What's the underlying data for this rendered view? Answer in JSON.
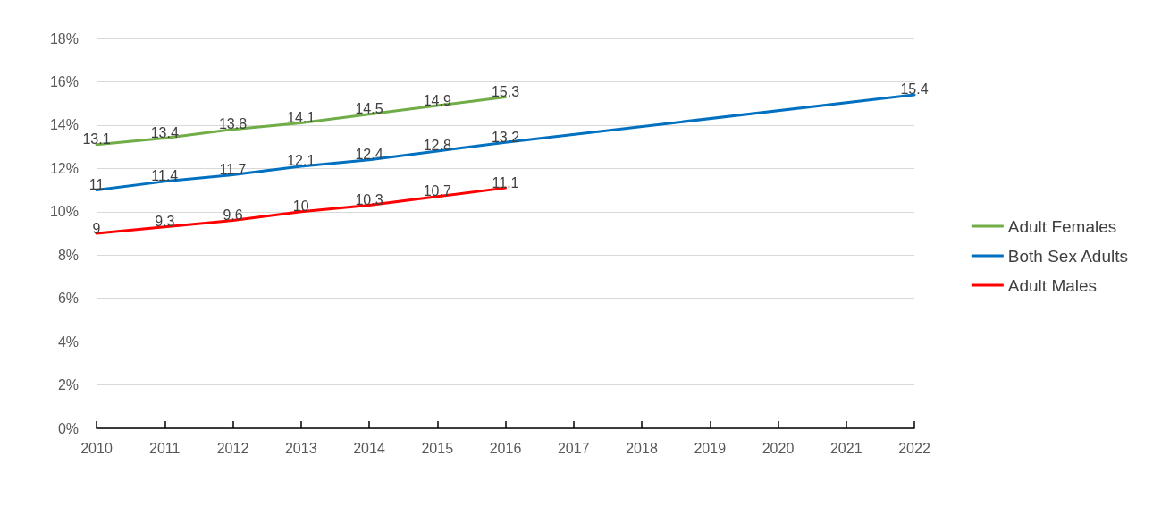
{
  "chart_data": {
    "type": "line",
    "xlim": [
      2010,
      2022
    ],
    "xticks": [
      2010,
      2011,
      2012,
      2013,
      2014,
      2015,
      2016,
      2017,
      2018,
      2019,
      2020,
      2021,
      2022
    ],
    "ylim": [
      0,
      18
    ],
    "yticks": [
      {
        "value": 0,
        "label": "0%"
      },
      {
        "value": 2,
        "label": "2%"
      },
      {
        "value": 4,
        "label": "4%"
      },
      {
        "value": 6,
        "label": "6%"
      },
      {
        "value": 8,
        "label": "8%"
      },
      {
        "value": 10,
        "label": "10%"
      },
      {
        "value": 12,
        "label": "12%"
      },
      {
        "value": 14,
        "label": "14%"
      },
      {
        "value": 16,
        "label": "16%"
      },
      {
        "value": 18,
        "label": "18%"
      }
    ],
    "series": [
      {
        "name": "Adult Females",
        "color": "#70ad47",
        "x": [
          2010,
          2011,
          2012,
          2013,
          2014,
          2015,
          2016
        ],
        "values": [
          13.1,
          13.4,
          13.8,
          14.1,
          14.5,
          14.9,
          15.3
        ]
      },
      {
        "name": "Both Sex Adults",
        "color": "#0070c0",
        "x": [
          2010,
          2011,
          2012,
          2013,
          2014,
          2015,
          2016,
          2022
        ],
        "values": [
          11,
          11.4,
          11.7,
          12.1,
          12.4,
          12.8,
          13.2,
          15.4
        ]
      },
      {
        "name": "Adult Males",
        "color": "#ff0000",
        "x": [
          2010,
          2011,
          2012,
          2013,
          2014,
          2015,
          2016
        ],
        "values": [
          9,
          9.3,
          9.6,
          10,
          10.3,
          10.7,
          11.1
        ]
      }
    ],
    "data_labels": true,
    "grid": "y",
    "legend": "right",
    "marker": "none",
    "line_style": "solid"
  }
}
